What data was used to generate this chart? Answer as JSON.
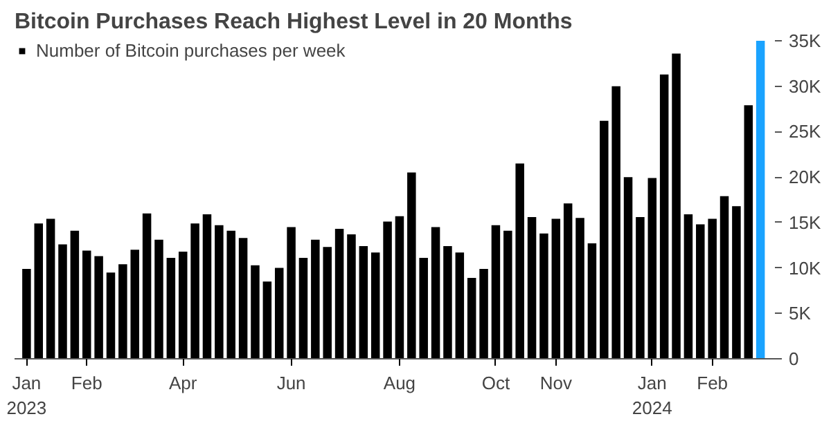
{
  "chart_data": {
    "type": "bar",
    "title": "Bitcoin Purchases Reach Highest Level in 20 Months",
    "categories": [
      "Jan\n2023",
      null,
      null,
      null,
      null,
      "Feb",
      null,
      null,
      null,
      null,
      null,
      null,
      null,
      "Apr",
      null,
      null,
      null,
      null,
      null,
      null,
      null,
      null,
      "Jun",
      null,
      null,
      null,
      null,
      null,
      null,
      null,
      null,
      "Aug",
      null,
      null,
      null,
      null,
      null,
      null,
      null,
      "Oct",
      null,
      null,
      null,
      null,
      "Nov",
      null,
      null,
      null,
      null,
      null,
      null,
      null,
      "Jan\n2024",
      null,
      null,
      null,
      null,
      "Feb",
      null,
      null,
      null,
      null
    ],
    "series": [
      {
        "name": "Number of Bitcoin purchases per week",
        "color": "#000000",
        "values": [
          9900,
          14900,
          15400,
          12600,
          14100,
          11900,
          11300,
          9500,
          10400,
          12000,
          16000,
          13100,
          11100,
          11800,
          14900,
          15900,
          14700,
          14100,
          13300,
          10300,
          8500,
          10000,
          14500,
          11100,
          13100,
          12300,
          14300,
          13700,
          12400,
          11700,
          15100,
          15700,
          20500,
          11100,
          14500,
          12400,
          11700,
          8900,
          9900,
          14700,
          14100,
          21500,
          15600,
          13800,
          15400,
          17100,
          15500,
          12700,
          26200,
          30000,
          20000,
          15600,
          19900,
          31300,
          33600,
          15900,
          14800,
          15400,
          17900,
          16800,
          27900,
          35000
        ],
        "colors": [
          "#000000",
          "#000000",
          "#000000",
          "#000000",
          "#000000",
          "#000000",
          "#000000",
          "#000000",
          "#000000",
          "#000000",
          "#000000",
          "#000000",
          "#000000",
          "#000000",
          "#000000",
          "#000000",
          "#000000",
          "#000000",
          "#000000",
          "#000000",
          "#000000",
          "#000000",
          "#000000",
          "#000000",
          "#000000",
          "#000000",
          "#000000",
          "#000000",
          "#000000",
          "#000000",
          "#000000",
          "#000000",
          "#000000",
          "#000000",
          "#000000",
          "#000000",
          "#000000",
          "#000000",
          "#000000",
          "#000000",
          "#000000",
          "#000000",
          "#000000",
          "#000000",
          "#000000",
          "#000000",
          "#000000",
          "#000000",
          "#000000",
          "#000000",
          "#000000",
          "#000000",
          "#000000",
          "#000000",
          "#000000",
          "#000000",
          "#000000",
          "#000000",
          "#000000",
          "#000000",
          "#000000",
          "#1aa3ff"
        ]
      }
    ],
    "ylim": [
      0,
      35000
    ],
    "yticks": [
      0,
      {
        "value": 5000,
        "label": "5K"
      },
      {
        "value": 10000,
        "label": "10K"
      },
      {
        "value": 15000,
        "label": "15K"
      },
      {
        "value": 20000,
        "label": "20K"
      },
      {
        "value": 25000,
        "label": "25K"
      },
      {
        "value": 30000,
        "label": "30K"
      },
      {
        "value": 35000,
        "label": "35K"
      }
    ],
    "grid": false,
    "legend": "top left"
  }
}
